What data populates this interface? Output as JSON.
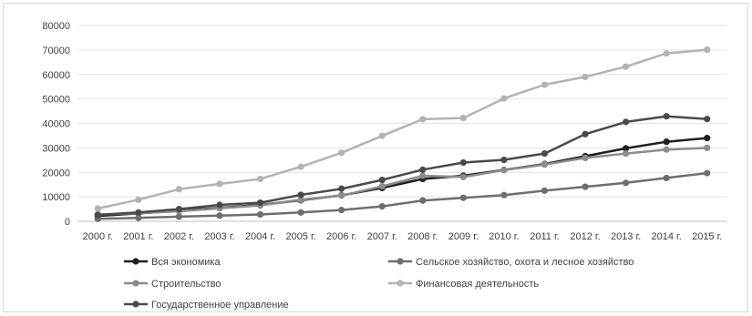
{
  "chart_data": {
    "type": "line",
    "title": "",
    "xlabel": "",
    "ylabel": "",
    "categories": [
      "2000 г.",
      "2001 г.",
      "2002 г.",
      "2003 г.",
      "2004 г.",
      "2005 г.",
      "2006 г.",
      "2007 г.",
      "2008 г.",
      "2009 г.",
      "2010 г.",
      "2011 г.",
      "2012 г.",
      "2013 г.",
      "2014 г.",
      "2015 г."
    ],
    "ylim": [
      0,
      80000
    ],
    "yticks": [
      0,
      10000,
      20000,
      30000,
      40000,
      50000,
      60000,
      70000,
      80000
    ],
    "grid": true,
    "legend_position": "bottom",
    "series": [
      {
        "name": "Вся экономика",
        "color": "#1f1f1f",
        "values": [
          2200,
          3200,
          4400,
          5500,
          6700,
          8600,
          10600,
          13600,
          17300,
          18600,
          21000,
          23400,
          26600,
          29800,
          32500,
          34000
        ]
      },
      {
        "name": "Сельское хозяйство, охота и лесное хозяйство",
        "color": "#6e6e6e",
        "values": [
          1000,
          1400,
          1900,
          2300,
          2800,
          3600,
          4600,
          6100,
          8500,
          9600,
          10700,
          12500,
          14100,
          15700,
          17700,
          19700
        ]
      },
      {
        "name": "Строительство",
        "color": "#8c8c8c",
        "values": [
          2800,
          3300,
          4100,
          5300,
          6500,
          8800,
          10500,
          14300,
          18600,
          18100,
          20900,
          23200,
          25900,
          27700,
          29300,
          30000
        ]
      },
      {
        "name": "Финансовая деятельность",
        "color": "#b3b3b3",
        "values": [
          5200,
          8800,
          13100,
          15300,
          17300,
          22300,
          28000,
          34900,
          41700,
          42200,
          50200,
          55800,
          59000,
          63200,
          68600,
          70100
        ]
      },
      {
        "name": "Государственное управление",
        "color": "#4a4a4a",
        "values": [
          2600,
          3600,
          5000,
          6700,
          7600,
          10800,
          13300,
          16900,
          21100,
          24000,
          25100,
          27700,
          35600,
          40600,
          42900,
          41800
        ]
      }
    ]
  }
}
